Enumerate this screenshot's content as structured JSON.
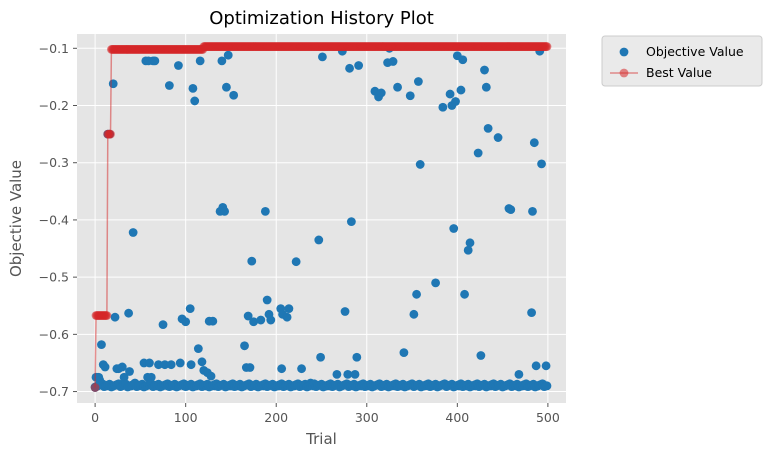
{
  "chart_data": {
    "type": "scatter",
    "title": "Optimization History Plot",
    "xlabel": "Trial",
    "ylabel": "Objective Value",
    "xlim": [
      -20,
      520
    ],
    "ylim": [
      -0.72,
      -0.075
    ],
    "xticks": [
      0,
      100,
      200,
      300,
      400,
      500
    ],
    "xtick_labels": [
      "0",
      "100",
      "200",
      "300",
      "400",
      "500"
    ],
    "yticks": [
      -0.7,
      -0.6,
      -0.5,
      -0.4,
      -0.3,
      -0.2,
      -0.1
    ],
    "ytick_labels": [
      "−0.7",
      "−0.6",
      "−0.5",
      "−0.4",
      "−0.3",
      "−0.2",
      "−0.1"
    ],
    "grid": true,
    "legend_position": "outside-top-right",
    "colors": {
      "objective": "#1f77b4",
      "best": "#d62728",
      "background": "#e5e5e5",
      "grid": "#ffffff"
    },
    "series": [
      {
        "name": "Objective Value",
        "kind": "scatter",
        "points": [
          [
            0,
            -0.693
          ],
          [
            1,
            -0.675
          ],
          [
            2,
            -0.675
          ],
          [
            3,
            -0.69
          ],
          [
            4,
            -0.675
          ],
          [
            5,
            -0.68
          ],
          [
            7,
            -0.618
          ],
          [
            9,
            -0.653
          ],
          [
            11,
            -0.657
          ],
          [
            13,
            -0.69
          ],
          [
            14,
            -0.25
          ],
          [
            16,
            -0.25
          ],
          [
            18,
            -0.69
          ],
          [
            20,
            -0.162
          ],
          [
            22,
            -0.57
          ],
          [
            24,
            -0.66
          ],
          [
            26,
            -0.66
          ],
          [
            28,
            -0.69
          ],
          [
            30,
            -0.657
          ],
          [
            32,
            -0.675
          ],
          [
            35,
            -0.69
          ],
          [
            37,
            -0.563
          ],
          [
            38,
            -0.665
          ],
          [
            40,
            -0.69
          ],
          [
            42,
            -0.422
          ],
          [
            44,
            -0.685
          ],
          [
            48,
            -0.69
          ],
          [
            52,
            -0.69
          ],
          [
            54,
            -0.65
          ],
          [
            56,
            -0.122
          ],
          [
            58,
            -0.675
          ],
          [
            59,
            -0.122
          ],
          [
            60,
            -0.65
          ],
          [
            62,
            -0.675
          ],
          [
            64,
            -0.122
          ],
          [
            66,
            -0.122
          ],
          [
            68,
            -0.69
          ],
          [
            70,
            -0.653
          ],
          [
            73,
            -0.69
          ],
          [
            75,
            -0.583
          ],
          [
            77,
            -0.653
          ],
          [
            80,
            -0.69
          ],
          [
            82,
            -0.165
          ],
          [
            84,
            -0.653
          ],
          [
            87,
            -0.69
          ],
          [
            90,
            -0.69
          ],
          [
            92,
            -0.13
          ],
          [
            94,
            -0.65
          ],
          [
            96,
            -0.573
          ],
          [
            98,
            -0.69
          ],
          [
            100,
            -0.578
          ],
          [
            102,
            -0.69
          ],
          [
            105,
            -0.555
          ],
          [
            106,
            -0.653
          ],
          [
            108,
            -0.17
          ],
          [
            110,
            -0.192
          ],
          [
            112,
            -0.69
          ],
          [
            114,
            -0.625
          ],
          [
            116,
            -0.122
          ],
          [
            118,
            -0.648
          ],
          [
            120,
            -0.663
          ],
          [
            122,
            -0.69
          ],
          [
            124,
            -0.667
          ],
          [
            126,
            -0.577
          ],
          [
            128,
            -0.673
          ],
          [
            130,
            -0.577
          ],
          [
            132,
            -0.69
          ],
          [
            134,
            -0.69
          ],
          [
            136,
            -0.69
          ],
          [
            138,
            -0.385
          ],
          [
            140,
            -0.122
          ],
          [
            141,
            -0.378
          ],
          [
            143,
            -0.385
          ],
          [
            145,
            -0.168
          ],
          [
            147,
            -0.112
          ],
          [
            149,
            -0.69
          ],
          [
            151,
            -0.69
          ],
          [
            153,
            -0.182
          ],
          [
            155,
            -0.69
          ],
          [
            158,
            -0.69
          ],
          [
            160,
            -0.69
          ],
          [
            163,
            -0.69
          ],
          [
            165,
            -0.62
          ],
          [
            167,
            -0.658
          ],
          [
            169,
            -0.568
          ],
          [
            171,
            -0.658
          ],
          [
            173,
            -0.472
          ],
          [
            175,
            -0.578
          ],
          [
            177,
            -0.69
          ],
          [
            180,
            -0.69
          ],
          [
            183,
            -0.575
          ],
          [
            186,
            -0.69
          ],
          [
            188,
            -0.385
          ],
          [
            190,
            -0.54
          ],
          [
            192,
            -0.565
          ],
          [
            194,
            -0.575
          ],
          [
            196,
            -0.69
          ],
          [
            199,
            -0.69
          ],
          [
            201,
            -0.69
          ],
          [
            203,
            -0.69
          ],
          [
            205,
            -0.555
          ],
          [
            206,
            -0.66
          ],
          [
            207,
            -0.565
          ],
          [
            210,
            -0.69
          ],
          [
            212,
            -0.57
          ],
          [
            214,
            -0.555
          ],
          [
            217,
            -0.69
          ],
          [
            220,
            -0.69
          ],
          [
            222,
            -0.473
          ],
          [
            225,
            -0.69
          ],
          [
            228,
            -0.66
          ],
          [
            232,
            -0.69
          ],
          [
            235,
            -0.69
          ],
          [
            238,
            -0.685
          ],
          [
            241,
            -0.69
          ],
          [
            244,
            -0.69
          ],
          [
            247,
            -0.435
          ],
          [
            249,
            -0.64
          ],
          [
            251,
            -0.115
          ],
          [
            253,
            -0.69
          ],
          [
            256,
            -0.69
          ],
          [
            259,
            -0.69
          ],
          [
            263,
            -0.69
          ],
          [
            267,
            -0.67
          ],
          [
            270,
            -0.69
          ],
          [
            273,
            -0.105
          ],
          [
            276,
            -0.56
          ],
          [
            279,
            -0.67
          ],
          [
            281,
            -0.135
          ],
          [
            283,
            -0.403
          ],
          [
            285,
            -0.69
          ],
          [
            287,
            -0.67
          ],
          [
            289,
            -0.64
          ],
          [
            291,
            -0.13
          ],
          [
            294,
            -0.69
          ],
          [
            298,
            -0.69
          ],
          [
            301,
            -0.69
          ],
          [
            305,
            -0.69
          ],
          [
            309,
            -0.175
          ],
          [
            313,
            -0.185
          ],
          [
            316,
            -0.178
          ],
          [
            318,
            -0.69
          ],
          [
            321,
            -0.69
          ],
          [
            323,
            -0.125
          ],
          [
            325,
            -0.1
          ],
          [
            327,
            -0.69
          ],
          [
            329,
            -0.123
          ],
          [
            331,
            -0.69
          ],
          [
            334,
            -0.168
          ],
          [
            338,
            -0.69
          ],
          [
            341,
            -0.632
          ],
          [
            345,
            -0.69
          ],
          [
            348,
            -0.183
          ],
          [
            351,
            -0.69
          ],
          [
            352,
            -0.565
          ],
          [
            355,
            -0.53
          ],
          [
            357,
            -0.158
          ],
          [
            359,
            -0.303
          ],
          [
            361,
            -0.69
          ],
          [
            364,
            -0.69
          ],
          [
            368,
            -0.69
          ],
          [
            372,
            -0.69
          ],
          [
            376,
            -0.51
          ],
          [
            380,
            -0.69
          ],
          [
            384,
            -0.203
          ],
          [
            388,
            -0.69
          ],
          [
            392,
            -0.18
          ],
          [
            394,
            -0.2
          ],
          [
            396,
            -0.415
          ],
          [
            398,
            -0.193
          ],
          [
            400,
            -0.113
          ],
          [
            402,
            -0.69
          ],
          [
            404,
            -0.173
          ],
          [
            406,
            -0.12
          ],
          [
            408,
            -0.53
          ],
          [
            410,
            -0.69
          ],
          [
            412,
            -0.453
          ],
          [
            414,
            -0.44
          ],
          [
            416,
            -0.69
          ],
          [
            420,
            -0.69
          ],
          [
            423,
            -0.283
          ],
          [
            426,
            -0.637
          ],
          [
            430,
            -0.138
          ],
          [
            432,
            -0.168
          ],
          [
            434,
            -0.24
          ],
          [
            437,
            -0.69
          ],
          [
            441,
            -0.69
          ],
          [
            445,
            -0.256
          ],
          [
            449,
            -0.69
          ],
          [
            453,
            -0.69
          ],
          [
            457,
            -0.38
          ],
          [
            459,
            -0.382
          ],
          [
            461,
            -0.69
          ],
          [
            465,
            -0.69
          ],
          [
            468,
            -0.67
          ],
          [
            472,
            -0.69
          ],
          [
            476,
            -0.69
          ],
          [
            480,
            -0.69
          ],
          [
            482,
            -0.562
          ],
          [
            483,
            -0.385
          ],
          [
            485,
            -0.265
          ],
          [
            487,
            -0.655
          ],
          [
            489,
            -0.69
          ],
          [
            491,
            -0.105
          ],
          [
            493,
            -0.302
          ],
          [
            495,
            -0.69
          ],
          [
            497,
            -0.69
          ],
          [
            498,
            -0.655
          ],
          [
            499,
            -0.69
          ]
        ]
      },
      {
        "name": "Best Value",
        "kind": "step_line_markers",
        "segments": [
          {
            "start": 0,
            "end": 0,
            "value": -0.693
          },
          {
            "start": 1,
            "end": 13,
            "value": -0.567
          },
          {
            "start": 14,
            "end": 17,
            "value": -0.25
          },
          {
            "start": 18,
            "end": 119,
            "value": -0.102
          },
          {
            "start": 120,
            "end": 499,
            "value": -0.097
          }
        ]
      }
    ]
  }
}
